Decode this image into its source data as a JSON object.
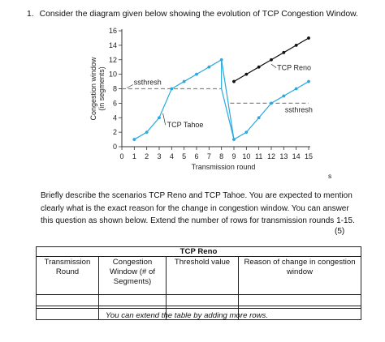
{
  "question": {
    "number": "1.",
    "text": "Consider the diagram given below showing the evolution of TCP Congestion Window."
  },
  "chart_data": {
    "type": "line",
    "xlabel": "Transmission round",
    "ylabel_line1": "Congestion window",
    "ylabel_line2": "(in segments)",
    "xlim": [
      0,
      15
    ],
    "ylim": [
      0,
      16
    ],
    "x_ticks": [
      0,
      1,
      2,
      3,
      4,
      5,
      6,
      7,
      8,
      9,
      10,
      11,
      12,
      13,
      14,
      15
    ],
    "y_ticks": [
      0,
      2,
      4,
      6,
      8,
      10,
      12,
      14,
      16
    ],
    "series": [
      {
        "name": "TCP Tahoe",
        "color": "#2aa8df",
        "x": [
          1,
          2,
          3,
          4,
          5,
          6,
          7,
          8,
          9,
          10,
          11,
          12,
          13,
          14,
          15
        ],
        "y": [
          1,
          2,
          4,
          8,
          9,
          10,
          11,
          12,
          1,
          2,
          4,
          6,
          7,
          8,
          9
        ]
      },
      {
        "name": "TCP Reno",
        "color": "#111111",
        "x": [
          9,
          10,
          11,
          12,
          13,
          14,
          15
        ],
        "y": [
          9,
          10,
          11,
          12,
          13,
          14,
          15
        ]
      }
    ],
    "thresholds": [
      {
        "label": "ssthresh",
        "y": 8,
        "x_start": 0,
        "x_end": 8
      },
      {
        "label": "ssthresh",
        "y": 6,
        "x_start": 8.7,
        "x_end": 15
      }
    ],
    "grid": false
  },
  "stray_mark": "s",
  "prompt": "Briefly describe the scenarios TCP Reno and TCP Tahoe. You are expected to mention clearly what is the exact reason for the change in congestion window.  You can answer this question as shown below. Extend the number of rows for transmission rounds 1-15.",
  "points": "(5)",
  "table": {
    "caption": "TCP Reno",
    "headers": [
      "Transmission Round",
      "Congestion Window (# of Segments)",
      "Threshold value",
      "Reason of change in congestion window"
    ]
  },
  "note": "You can extend the table by adding more rows."
}
